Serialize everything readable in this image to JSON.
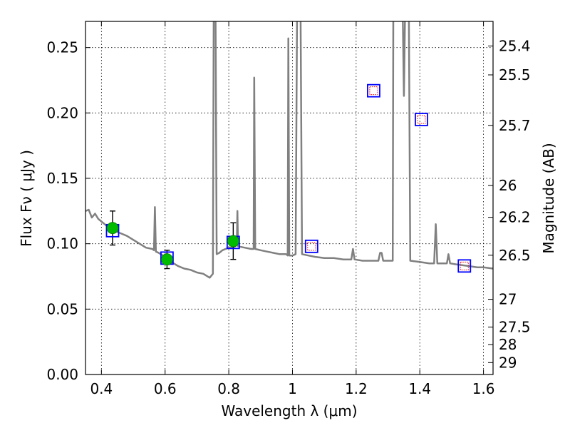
{
  "chart_data": {
    "type": "line",
    "xlabel": "Wavelength  λ (μm)",
    "ylabel": "Flux  Fν  ( μJy )",
    "y2label": "Magnitude (AB)",
    "xlim": [
      0.35,
      1.63
    ],
    "ylim": [
      0.0,
      0.27
    ],
    "grid": true,
    "x_ticks": [
      0.4,
      0.6,
      0.8,
      1.0,
      1.2,
      1.4,
      1.6
    ],
    "x_tick_labels": [
      "0.4",
      "0.6",
      "0.8",
      "1",
      "1.2",
      "1.4",
      "1.6"
    ],
    "y_ticks": [
      0.0,
      0.05,
      0.1,
      0.15,
      0.2,
      0.25
    ],
    "y_tick_labels": [
      "0.00",
      "0.05",
      "0.10",
      "0.15",
      "0.20",
      "0.25"
    ],
    "y2_ticks": [
      {
        "label": "25.4",
        "flux": 0.2512
      },
      {
        "label": "25.5",
        "flux": 0.2291
      },
      {
        "label": "25.7",
        "flux": 0.1905
      },
      {
        "label": "26",
        "flux": 0.1445
      },
      {
        "label": "26.2",
        "flux": 0.1202
      },
      {
        "label": "26.5",
        "flux": 0.0912
      },
      {
        "label": "27",
        "flux": 0.0575
      },
      {
        "label": "27.5",
        "flux": 0.0363
      },
      {
        "label": "28",
        "flux": 0.0229
      },
      {
        "label": "29",
        "flux": 0.0091
      }
    ],
    "series": [
      {
        "kind": "spectrum",
        "color": "#808080",
        "points": [
          [
            0.35,
            0.125
          ],
          [
            0.36,
            0.126
          ],
          [
            0.37,
            0.12
          ],
          [
            0.38,
            0.123
          ],
          [
            0.39,
            0.119
          ],
          [
            0.4,
            0.117
          ],
          [
            0.41,
            0.115
          ],
          [
            0.42,
            0.113
          ],
          [
            0.43,
            0.112
          ],
          [
            0.44,
            0.11
          ],
          [
            0.46,
            0.108
          ],
          [
            0.48,
            0.106
          ],
          [
            0.5,
            0.103
          ],
          [
            0.52,
            0.1
          ],
          [
            0.54,
            0.097
          ],
          [
            0.56,
            0.096
          ],
          [
            0.565,
            0.095
          ],
          [
            0.568,
            0.128
          ],
          [
            0.571,
            0.094
          ],
          [
            0.58,
            0.093
          ],
          [
            0.6,
            0.09
          ],
          [
            0.62,
            0.086
          ],
          [
            0.64,
            0.083
          ],
          [
            0.66,
            0.081
          ],
          [
            0.68,
            0.08
          ],
          [
            0.7,
            0.078
          ],
          [
            0.72,
            0.077
          ],
          [
            0.74,
            0.074
          ],
          [
            0.75,
            0.077
          ],
          [
            0.753,
            0.3
          ],
          [
            0.758,
            0.3
          ],
          [
            0.762,
            0.092
          ],
          [
            0.77,
            0.093
          ],
          [
            0.78,
            0.095
          ],
          [
            0.79,
            0.096
          ],
          [
            0.8,
            0.097
          ],
          [
            0.81,
            0.097
          ],
          [
            0.82,
            0.098
          ],
          [
            0.825,
            0.099
          ],
          [
            0.827,
            0.125
          ],
          [
            0.829,
            0.098
          ],
          [
            0.85,
            0.097
          ],
          [
            0.87,
            0.096
          ],
          [
            0.878,
            0.096
          ],
          [
            0.88,
            0.227
          ],
          [
            0.883,
            0.096
          ],
          [
            0.9,
            0.095
          ],
          [
            0.92,
            0.094
          ],
          [
            0.94,
            0.093
          ],
          [
            0.96,
            0.092
          ],
          [
            0.98,
            0.092
          ],
          [
            0.985,
            0.091
          ],
          [
            0.987,
            0.257
          ],
          [
            0.99,
            0.091
          ],
          [
            1.0,
            0.091
          ],
          [
            1.01,
            0.092
          ],
          [
            1.015,
            0.3
          ],
          [
            1.025,
            0.3
          ],
          [
            1.03,
            0.092
          ],
          [
            1.05,
            0.091
          ],
          [
            1.07,
            0.09
          ],
          [
            1.1,
            0.089
          ],
          [
            1.13,
            0.089
          ],
          [
            1.16,
            0.088
          ],
          [
            1.185,
            0.088
          ],
          [
            1.19,
            0.096
          ],
          [
            1.195,
            0.088
          ],
          [
            1.22,
            0.087
          ],
          [
            1.25,
            0.087
          ],
          [
            1.27,
            0.087
          ],
          [
            1.275,
            0.093
          ],
          [
            1.28,
            0.093
          ],
          [
            1.285,
            0.087
          ],
          [
            1.31,
            0.087
          ],
          [
            1.315,
            0.087
          ],
          [
            1.317,
            0.3
          ],
          [
            1.345,
            0.3
          ],
          [
            1.35,
            0.213
          ],
          [
            1.355,
            0.3
          ],
          [
            1.365,
            0.3
          ],
          [
            1.37,
            0.087
          ],
          [
            1.4,
            0.086
          ],
          [
            1.43,
            0.085
          ],
          [
            1.445,
            0.085
          ],
          [
            1.45,
            0.115
          ],
          [
            1.455,
            0.085
          ],
          [
            1.47,
            0.085
          ],
          [
            1.485,
            0.085
          ],
          [
            1.49,
            0.092
          ],
          [
            1.495,
            0.085
          ],
          [
            1.52,
            0.084
          ],
          [
            1.55,
            0.083
          ],
          [
            1.58,
            0.082
          ],
          [
            1.6,
            0.082
          ],
          [
            1.63,
            0.081
          ]
        ]
      },
      {
        "kind": "observed",
        "color": "#00bb00",
        "points": [
          {
            "x": 0.435,
            "y": 0.112,
            "err": 0.013
          },
          {
            "x": 0.606,
            "y": 0.088,
            "err": 0.007
          },
          {
            "x": 0.814,
            "y": 0.102,
            "err": 0.014
          }
        ]
      },
      {
        "kind": "model-square",
        "color": "#0000ff",
        "points": [
          {
            "x": 0.435,
            "y": 0.11
          },
          {
            "x": 0.606,
            "y": 0.089
          },
          {
            "x": 0.814,
            "y": 0.101
          },
          {
            "x": 1.06,
            "y": 0.098
          },
          {
            "x": 1.255,
            "y": 0.217
          },
          {
            "x": 1.405,
            "y": 0.195
          },
          {
            "x": 1.54,
            "y": 0.083
          }
        ]
      },
      {
        "kind": "upper-square",
        "color": "#ff0000",
        "points": [
          {
            "x": 1.06,
            "y": 0.098
          },
          {
            "x": 1.255,
            "y": 0.217
          },
          {
            "x": 1.405,
            "y": 0.195
          },
          {
            "x": 1.54,
            "y": 0.083
          }
        ]
      }
    ]
  }
}
